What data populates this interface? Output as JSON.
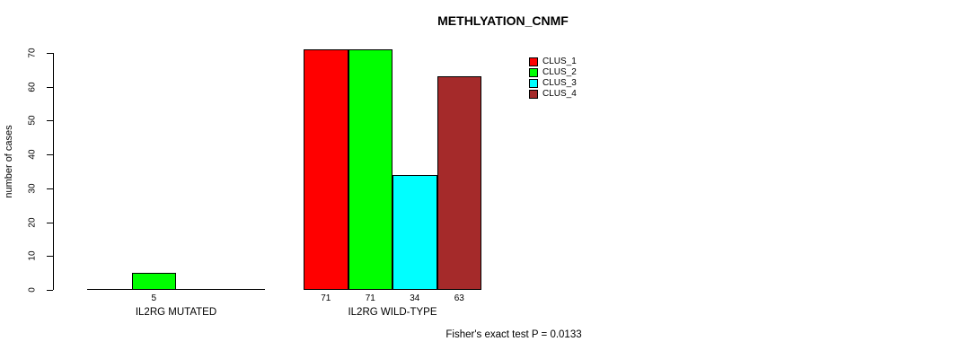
{
  "title": "METHLYATION_CNMF",
  "footer": {
    "stat_text": "Fisher's exact test P = 0.0133"
  },
  "chart_data": {
    "type": "bar",
    "title": "METHLYATION_CNMF",
    "xlabel": "",
    "ylabel": "number of cases",
    "ylim": [
      0,
      70
    ],
    "y_ticks": [
      0,
      10,
      20,
      30,
      40,
      50,
      60,
      70
    ],
    "grid": false,
    "background": "#ffffff",
    "axis_color": "#000000",
    "categories": [
      "IL2RG MUTATED",
      "IL2RG WILD-TYPE"
    ],
    "series": [
      {
        "name": "CLUS_1",
        "color": "#ff0000",
        "values": [
          0,
          71
        ]
      },
      {
        "name": "CLUS_2",
        "color": "#00ff00",
        "values": [
          5,
          71
        ]
      },
      {
        "name": "CLUS_3",
        "color": "#00ffff",
        "values": [
          0,
          34
        ]
      },
      {
        "name": "CLUS_4",
        "color": "#a52a2a",
        "values": [
          0,
          63
        ]
      }
    ],
    "value_labels": [
      [
        "",
        "5",
        "",
        ""
      ],
      [
        "71",
        "71",
        "34",
        "63"
      ]
    ],
    "legend": {
      "position": "top-right",
      "entries": [
        "CLUS_1",
        "CLUS_2",
        "CLUS_3",
        "CLUS_4"
      ]
    },
    "annotation": "Fisher's exact test P = 0.0133"
  }
}
